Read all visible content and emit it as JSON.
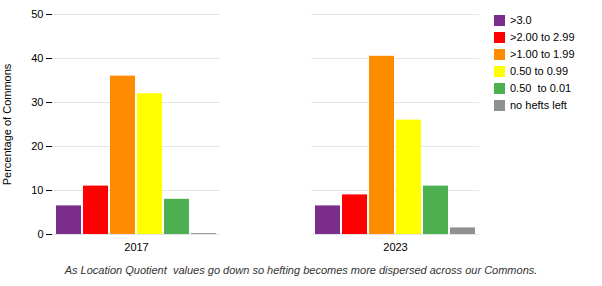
{
  "chart_data": {
    "type": "bar",
    "categories": [
      "2017",
      "2023"
    ],
    "series": [
      {
        "name": ">3.0",
        "color": "#7B2D8B",
        "values": [
          6.5,
          6.5
        ]
      },
      {
        "name": ">2.00 to 2.99",
        "color": "#FF0000",
        "values": [
          11.0,
          9.0
        ]
      },
      {
        "name": ">1.00 to 1.99",
        "color": "#FF8C00",
        "values": [
          36.0,
          40.5
        ]
      },
      {
        "name": "0.50 to 0.99",
        "color": "#FFFF00",
        "values": [
          32.0,
          26.0
        ]
      },
      {
        "name": "0.50  to 0.01",
        "color": "#4CAF50",
        "values": [
          8.0,
          11.0
        ]
      },
      {
        "name": "no hefts left",
        "color": "#909090",
        "values": [
          0.2,
          1.5
        ]
      }
    ],
    "ylabel": "Percentage of Commons",
    "ylim": [
      0,
      50
    ],
    "yticks": [
      0,
      10,
      20,
      30,
      40,
      50
    ],
    "grid": true,
    "legend": "right",
    "caption": "As Location Quotient  values go down so hefting becomes more dispersed across our Commons."
  }
}
